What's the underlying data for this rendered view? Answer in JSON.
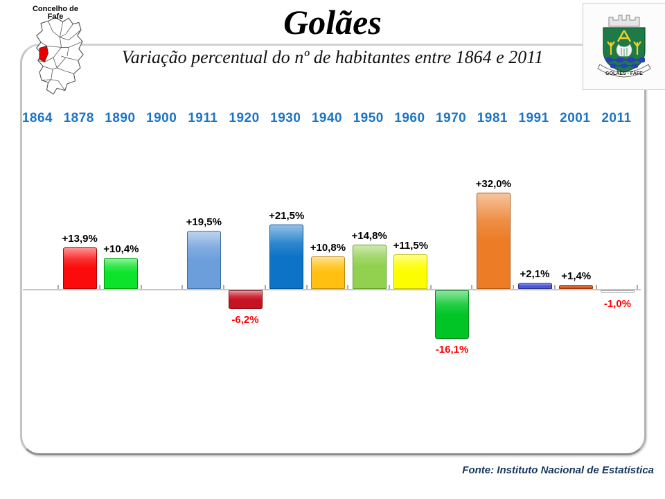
{
  "header": {
    "map_caption_line1": "Concelho de",
    "map_caption_line2": "Fafe",
    "title": "Golães",
    "subtitle": "Variação percentual do nº de habitantes entre 1864 e 2011",
    "crest_caption": "GOLÃES - FAFE"
  },
  "footer": {
    "source": "Fonte: Instituto Nacional de Estatística"
  },
  "chart_data": {
    "type": "bar",
    "title": "Golães",
    "subtitle": "Variação percentual do nº de habitantes entre 1864 e 2011",
    "unit": "%",
    "grid": false,
    "legend": "none",
    "baseline": 0,
    "ylim": [
      -20,
      36
    ],
    "x_tick_years": [
      "1864",
      "1878",
      "1890",
      "1900",
      "1911",
      "1920",
      "1930",
      "1940",
      "1950",
      "1960",
      "1970",
      "1981",
      "1991",
      "2001",
      "2011"
    ],
    "series": [
      {
        "end_year": "1878",
        "value": 13.9,
        "label": "+13,9%",
        "fill": "#fb0b0b",
        "edge": "#a50000"
      },
      {
        "end_year": "1890",
        "value": 10.4,
        "label": "+10,4%",
        "fill": "#0ce32b",
        "edge": "#00950d"
      },
      {
        "end_year": "1900",
        "value": null,
        "label": "",
        "fill": "",
        "edge": ""
      },
      {
        "end_year": "1911",
        "value": 19.5,
        "label": "+19,5%",
        "fill": "#6d9edc",
        "edge": "#3c6ea5"
      },
      {
        "end_year": "1920",
        "value": -6.2,
        "label": "-6,2%",
        "fill": "#c61324",
        "edge": "#7e0008"
      },
      {
        "end_year": "1930",
        "value": 21.5,
        "label": "+21,5%",
        "fill": "#0c73c6",
        "edge": "#064e87"
      },
      {
        "end_year": "1940",
        "value": 10.8,
        "label": "+10,8%",
        "fill": "#ffc011",
        "edge": "#b8860b"
      },
      {
        "end_year": "1950",
        "value": 14.8,
        "label": "+14,8%",
        "fill": "#92d050",
        "edge": "#5f9a28"
      },
      {
        "end_year": "1960",
        "value": 11.5,
        "label": "+11,5%",
        "fill": "#fdfd02",
        "edge": "#bdbd00"
      },
      {
        "end_year": "1970",
        "value": -16.1,
        "label": "-16,1%",
        "fill": "#01c527",
        "edge": "#00891a"
      },
      {
        "end_year": "1981",
        "value": 32.0,
        "label": "+32,0%",
        "fill": "#ec7c26",
        "edge": "#a85412"
      },
      {
        "end_year": "1991",
        "value": 2.1,
        "label": "+2,1%",
        "fill": "#4c57e0",
        "edge": "#232c7e"
      },
      {
        "end_year": "2001",
        "value": 1.4,
        "label": "+1,4%",
        "fill": "#dc5517",
        "edge": "#8f3008"
      },
      {
        "end_year": "2011",
        "value": -1.0,
        "label": "-1,0%",
        "fill": "#ffffff",
        "edge": "#9e9e9e"
      }
    ]
  },
  "colors": {
    "year_labels": "#1b74c4",
    "positive_labels": "#000000",
    "negative_labels": "#ff0000",
    "source_text": "#16365c",
    "axis": "#c6c6c6",
    "panel_border": "#adadad",
    "highlighted_parish": "#e80000",
    "crest_green": "#1e7a46",
    "crest_gold": "#f0cf2a",
    "crest_wave_blue": "#2a3eb8"
  }
}
